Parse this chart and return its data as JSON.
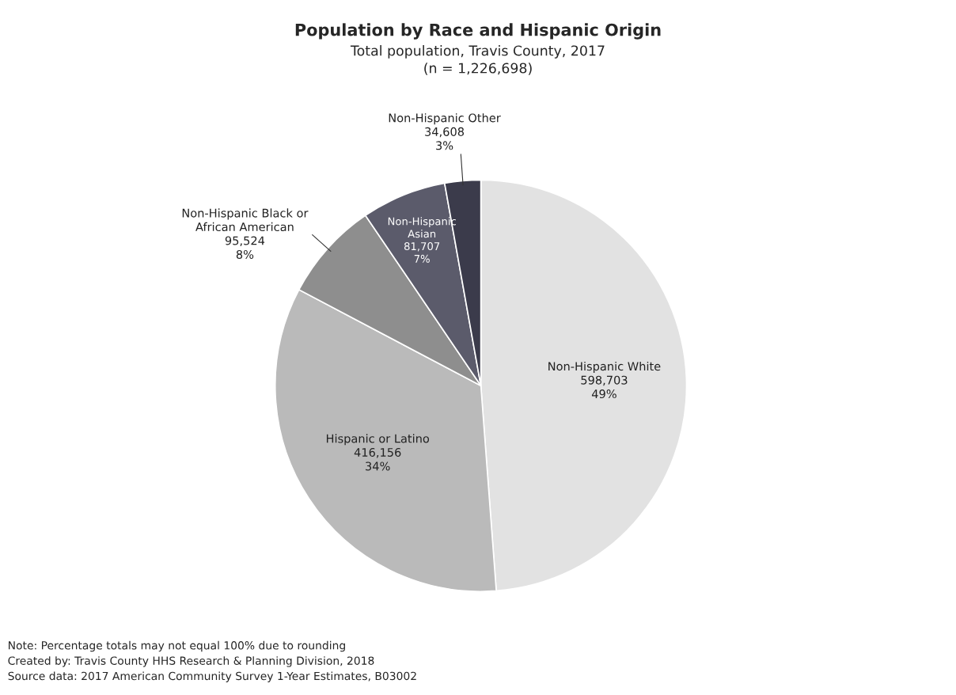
{
  "chart_data": {
    "type": "pie",
    "title": "Population by Race and Hispanic Origin",
    "subtitle": "Total population, Travis County, 2017\n(n = 1,226,698)",
    "categories": [
      "Non-Hispanic White",
      "Hispanic or Latino",
      "Non-Hispanic Black or\nAfrican American",
      "Non-Hispanic\nAsian",
      "Non-Hispanic Other"
    ],
    "values": [
      598703,
      416156,
      95524,
      81707,
      34608
    ],
    "value_labels": [
      "598,703\n49%",
      "416,156\n34%",
      "95,524\n8%",
      "81,707\n7%",
      "34,608\n3%"
    ],
    "colors": [
      "#e2e2e2",
      "#bababa",
      "#8e8e8e",
      "#5b5b6b",
      "#3b3b4b"
    ],
    "annotations": [
      "Note: Percentage totals may not equal 100% due to rounding",
      "Created by: Travis County HHS Research & Planning Division, 2018",
      "Source data: 2017 American Community Survey 1-Year Estimates, B03002"
    ]
  }
}
